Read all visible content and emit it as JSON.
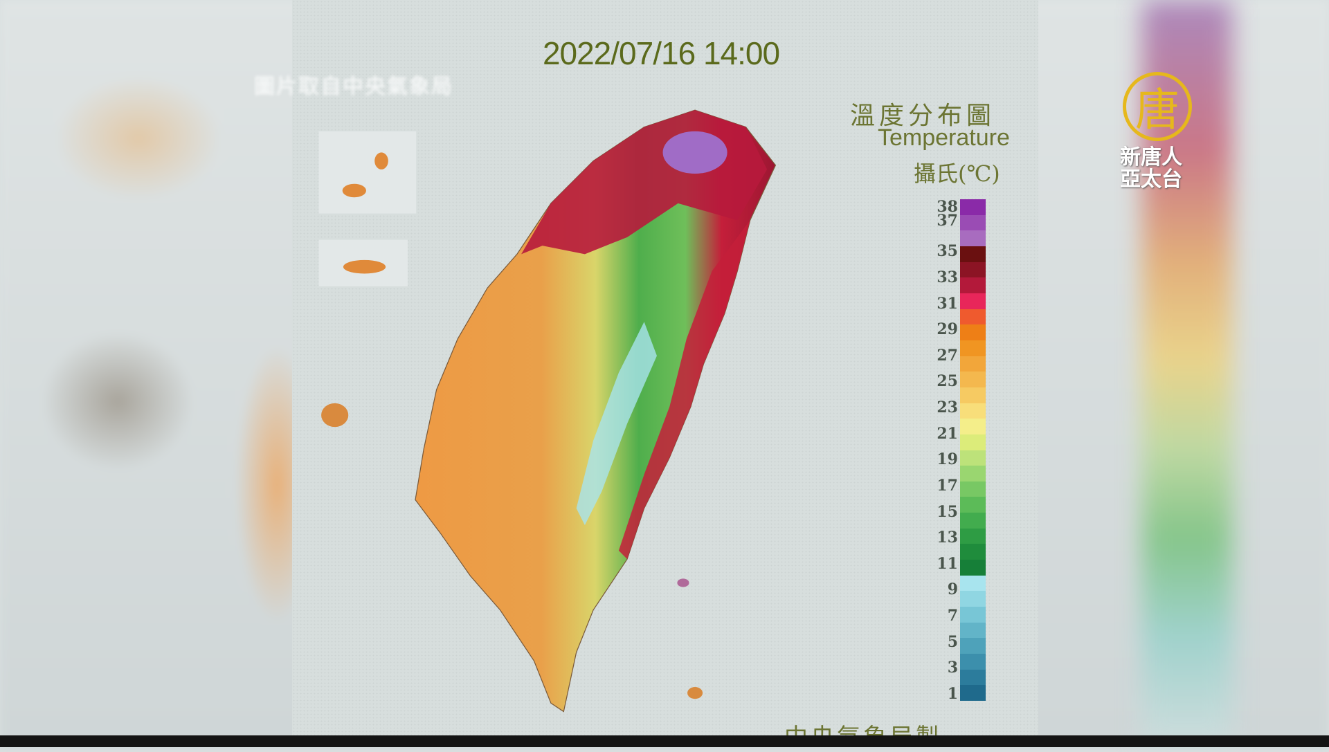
{
  "timestamp": "2022/07/16 14:00",
  "source_caption": "圖片取自中央氣象局",
  "legend": {
    "title_zh": "溫度分布圖",
    "title_en": "Temperature",
    "unit": "攝氏(℃)",
    "tick_labels": [
      "38",
      "37",
      "35",
      "33",
      "31",
      "29",
      "27",
      "25",
      "23",
      "21",
      "19",
      "17",
      "15",
      "13",
      "11",
      "9",
      "7",
      "5",
      "3",
      "1"
    ],
    "colors": [
      "#8a2aa8",
      "#9a4cb4",
      "#a86cbf",
      "#6a1010",
      "#8c1424",
      "#b3193a",
      "#e8265a",
      "#ef5a2e",
      "#ee7f16",
      "#f09522",
      "#f2a63a",
      "#f4b84e",
      "#f6ca62",
      "#f8de7a",
      "#f4ee8a",
      "#dcec7a",
      "#bde27a",
      "#9ad670",
      "#78c864",
      "#5cbb58",
      "#42ac4e",
      "#2e9c44",
      "#1f8c3c",
      "#167f38",
      "#a8e4ee",
      "#90d6e2",
      "#78c6d6",
      "#62b4c8",
      "#4ea2ba",
      "#3c8fac",
      "#2c7c9c",
      "#1f6a8c"
    ]
  },
  "logo": {
    "glyph": "唐",
    "line1": "新唐人",
    "line2": "亞太台",
    "color": "#e6b81c"
  },
  "footer_credit": "中央氣象局製",
  "map_colors": {
    "west_plain": "#ec9a3e",
    "mountains": "#4fae4c",
    "peaks": "#a8e4ee",
    "east_coast": "#c41f3a",
    "north": "#b71a3c",
    "hot_spot": "#a06cc6"
  }
}
